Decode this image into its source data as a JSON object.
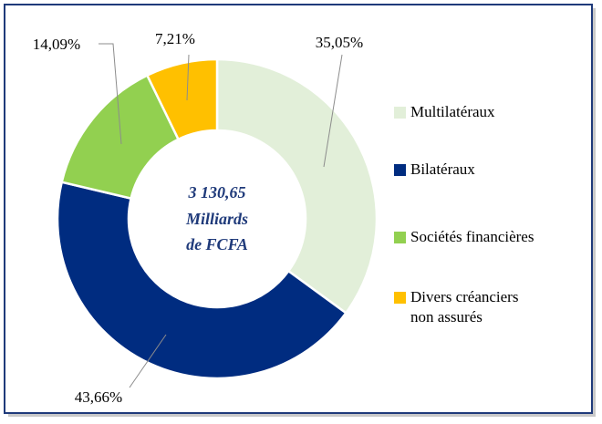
{
  "chart_data": {
    "type": "donut",
    "center_label": [
      "3 130,65",
      "Milliards",
      "de FCFA"
    ],
    "categories": [
      "Multilatéraux",
      "Bilatéraux",
      "Sociétés financières",
      "Divers créanciers\nnon assurés"
    ],
    "values": [
      35.05,
      43.66,
      14.09,
      7.21
    ],
    "value_labels": [
      "35,05%",
      "43,66%",
      "14,09%",
      "7,21%"
    ],
    "colors": [
      "#e2efd9",
      "#002c80",
      "#92d050",
      "#ffc000"
    ],
    "legend": "right"
  }
}
